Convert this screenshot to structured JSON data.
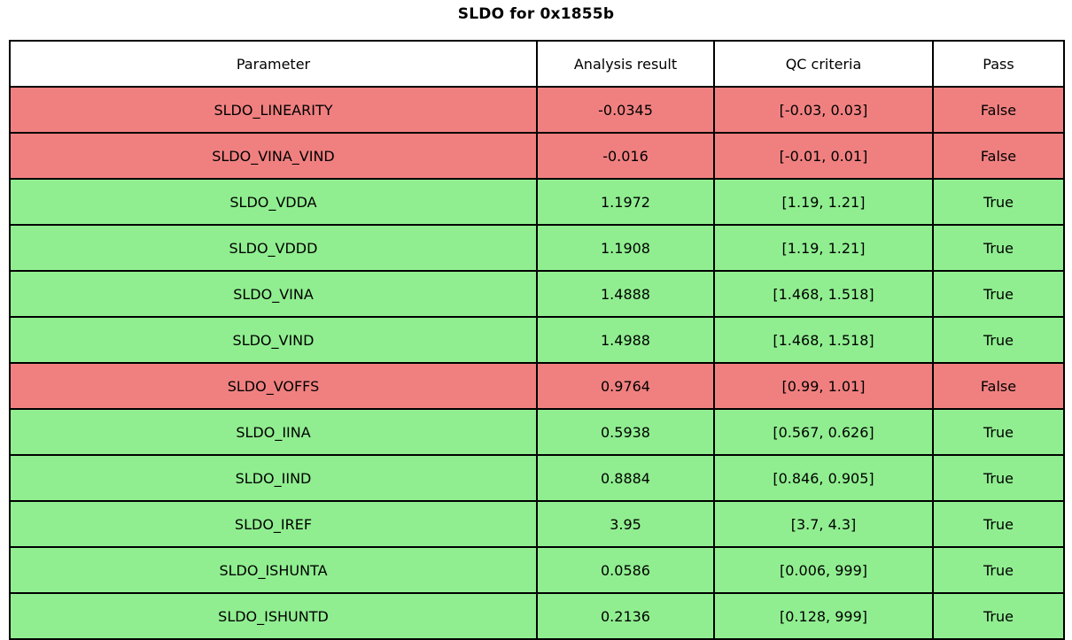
{
  "title": "SLDO for 0x1855b",
  "colors": {
    "pass_bg": "#90EE90",
    "fail_bg": "#F08080",
    "header_bg": "#FFFFFF",
    "border": "#000000",
    "text": "#000000"
  },
  "table": {
    "headers": [
      "Parameter",
      "Analysis result",
      "QC criteria",
      "Pass"
    ],
    "rows": [
      {
        "parameter": "SLDO_LINEARITY",
        "result": "-0.0345",
        "criteria": "[-0.03, 0.03]",
        "pass": "False"
      },
      {
        "parameter": "SLDO_VINA_VIND",
        "result": "-0.016",
        "criteria": "[-0.01, 0.01]",
        "pass": "False"
      },
      {
        "parameter": "SLDO_VDDA",
        "result": "1.1972",
        "criteria": "[1.19, 1.21]",
        "pass": "True"
      },
      {
        "parameter": "SLDO_VDDD",
        "result": "1.1908",
        "criteria": "[1.19, 1.21]",
        "pass": "True"
      },
      {
        "parameter": "SLDO_VINA",
        "result": "1.4888",
        "criteria": "[1.468, 1.518]",
        "pass": "True"
      },
      {
        "parameter": "SLDO_VIND",
        "result": "1.4988",
        "criteria": "[1.468, 1.518]",
        "pass": "True"
      },
      {
        "parameter": "SLDO_VOFFS",
        "result": "0.9764",
        "criteria": "[0.99, 1.01]",
        "pass": "False"
      },
      {
        "parameter": "SLDO_IINA",
        "result": "0.5938",
        "criteria": "[0.567, 0.626]",
        "pass": "True"
      },
      {
        "parameter": "SLDO_IIND",
        "result": "0.8884",
        "criteria": "[0.846, 0.905]",
        "pass": "True"
      },
      {
        "parameter": "SLDO_IREF",
        "result": "3.95",
        "criteria": "[3.7, 4.3]",
        "pass": "True"
      },
      {
        "parameter": "SLDO_ISHUNTA",
        "result": "0.0586",
        "criteria": "[0.006, 999]",
        "pass": "True"
      },
      {
        "parameter": "SLDO_ISHUNTD",
        "result": "0.2136",
        "criteria": "[0.128, 999]",
        "pass": "True"
      }
    ]
  },
  "chart_data": {
    "type": "table",
    "title": "SLDO for 0x1855b",
    "columns": [
      "Parameter",
      "Analysis result",
      "QC criteria",
      "Pass"
    ],
    "rows": [
      [
        "SLDO_LINEARITY",
        -0.0345,
        "[-0.03, 0.03]",
        false
      ],
      [
        "SLDO_VINA_VIND",
        -0.016,
        "[-0.01, 0.01]",
        false
      ],
      [
        "SLDO_VDDA",
        1.1972,
        "[1.19, 1.21]",
        true
      ],
      [
        "SLDO_VDDD",
        1.1908,
        "[1.19, 1.21]",
        true
      ],
      [
        "SLDO_VINA",
        1.4888,
        "[1.468, 1.518]",
        true
      ],
      [
        "SLDO_VIND",
        1.4988,
        "[1.468, 1.518]",
        true
      ],
      [
        "SLDO_VOFFS",
        0.9764,
        "[0.99, 1.01]",
        false
      ],
      [
        "SLDO_IINA",
        0.5938,
        "[0.567, 0.626]",
        true
      ],
      [
        "SLDO_IIND",
        0.8884,
        "[0.846, 0.905]",
        true
      ],
      [
        "SLDO_IREF",
        3.95,
        "[3.7, 4.3]",
        true
      ],
      [
        "SLDO_ISHUNTA",
        0.0586,
        "[0.006, 999]",
        true
      ],
      [
        "SLDO_ISHUNTD",
        0.2136,
        "[0.128, 999]",
        true
      ]
    ],
    "row_color_rule": "pass=true rows light green (#90EE90), pass=false rows light coral (#F08080)",
    "legend_position": "none",
    "grid": "full cell borders, black"
  }
}
